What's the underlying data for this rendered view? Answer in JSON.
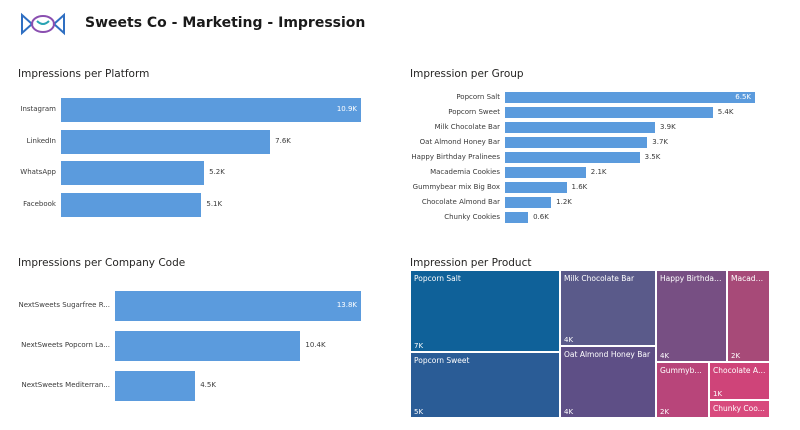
{
  "header": {
    "title": "Sweets Co - Marketing - Impression"
  },
  "colors": {
    "bar": "#5b9bdd",
    "logo_blue": "#2f6fc2",
    "logo_purple": "#8a4fb0",
    "logo_teal": "#29a3b3"
  },
  "platform": {
    "title": "Impressions per Platform",
    "chart_data": {
      "type": "bar",
      "categories": [
        "Instagram",
        "LinkedIn",
        "WhatsApp",
        "Facebook"
      ],
      "values": [
        10.9,
        7.6,
        5.2,
        5.1
      ],
      "labels": [
        "10.9K",
        "7.6K",
        "5.2K",
        "5.1K"
      ],
      "unit": "K"
    }
  },
  "group": {
    "title": "Impression per Group",
    "chart_data": {
      "type": "bar",
      "categories": [
        "Popcorn Salt",
        "Popcorn Sweet",
        "Milk Chocolate Bar",
        "Oat Almond Honey Bar",
        "Happy Birthday Pralinees",
        "Macademia Cookies",
        "Gummybear mix Big Box",
        "Chocolate Almond Bar",
        "Chunky Cookies"
      ],
      "values": [
        6.5,
        5.4,
        3.9,
        3.7,
        3.5,
        2.1,
        1.6,
        1.2,
        0.6
      ],
      "labels": [
        "6.5K",
        "5.4K",
        "3.9K",
        "3.7K",
        "3.5K",
        "2.1K",
        "1.6K",
        "1.2K",
        "0.6K"
      ],
      "unit": "K"
    }
  },
  "company": {
    "title": "Impressions per Company Code",
    "chart_data": {
      "type": "bar",
      "categories": [
        "NextSweets Sugarfree R...",
        "NextSweets Popcorn La...",
        "NextSweets Mediterran..."
      ],
      "values": [
        13.8,
        10.4,
        4.5
      ],
      "labels": [
        "13.8K",
        "10.4K",
        "4.5K"
      ],
      "unit": "K"
    }
  },
  "product": {
    "title": "Impression per Product",
    "chart_data": {
      "type": "treemap",
      "items": [
        {
          "name": "Popcorn Salt",
          "label": "7K",
          "color": "#0f6199"
        },
        {
          "name": "Popcorn Sweet",
          "label": "5K",
          "color": "#2a5c96"
        },
        {
          "name": "Milk Chocolate Bar",
          "label": "4K",
          "color": "#5a5a8a"
        },
        {
          "name": "Oat Almond Honey Bar",
          "label": "4K",
          "color": "#5e4f86"
        },
        {
          "name": "Happy Birthday ...",
          "label": "4K",
          "color": "#774f83"
        },
        {
          "name": "Macade...",
          "label": "2K",
          "color": "#a74a78"
        },
        {
          "name": "Gummybe...",
          "label": "2K",
          "color": "#b8457a"
        },
        {
          "name": "Chocolate Al...",
          "label": "1K",
          "color": "#cf4479"
        },
        {
          "name": "Chunky Coo...",
          "label": "",
          "color": "#d84a7d"
        }
      ]
    }
  }
}
